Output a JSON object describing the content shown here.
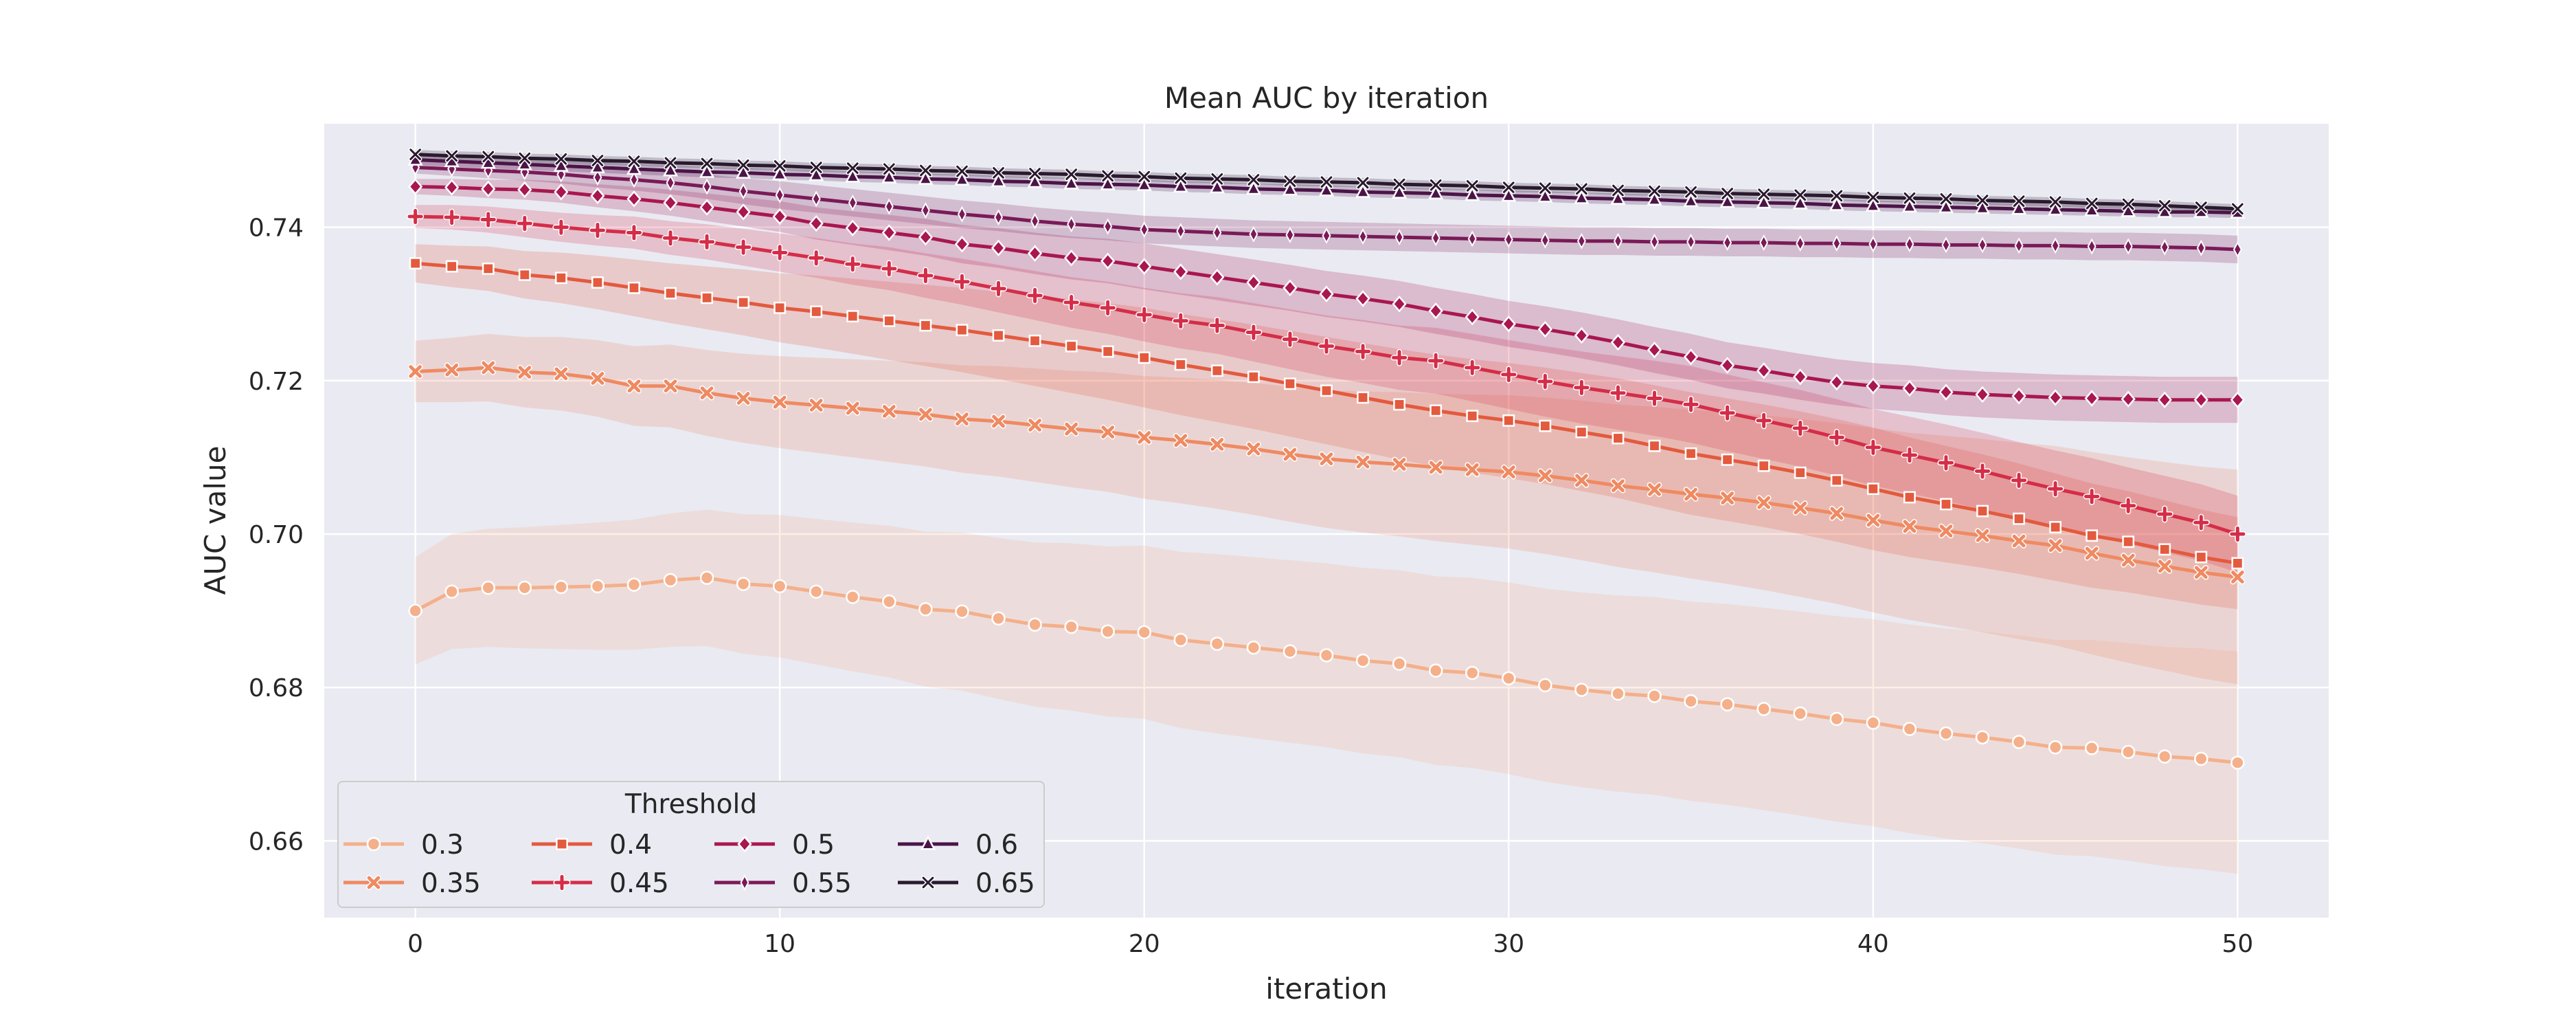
{
  "chart_data": {
    "type": "line",
    "title": "Mean AUC by iteration",
    "xlabel": "iteration",
    "ylabel": "AUC value",
    "xlim": [
      -2.5,
      52.5
    ],
    "ylim": [
      0.65,
      0.7535
    ],
    "xticks": [
      0,
      10,
      20,
      30,
      40,
      50
    ],
    "yticks": [
      0.66,
      0.68,
      0.7,
      0.72,
      0.74
    ],
    "ytick_labels": [
      "0.66",
      "0.68",
      "0.70",
      "0.72",
      "0.74"
    ],
    "grid": true,
    "legend": {
      "title": "Threshold",
      "placement": "lower-left",
      "columns": 4
    },
    "x": [
      0,
      1,
      2,
      3,
      4,
      5,
      6,
      7,
      8,
      9,
      10,
      11,
      12,
      13,
      14,
      15,
      16,
      17,
      18,
      19,
      20,
      21,
      22,
      23,
      24,
      25,
      26,
      27,
      28,
      29,
      30,
      31,
      32,
      33,
      34,
      35,
      36,
      37,
      38,
      39,
      40,
      41,
      42,
      43,
      44,
      45,
      46,
      47,
      48,
      49,
      50
    ],
    "series": [
      {
        "name": "0.3",
        "color": "#f4b08b",
        "marker": "circle",
        "values": [
          0.69,
          0.6925,
          0.693,
          0.693,
          0.6931,
          0.6932,
          0.6934,
          0.694,
          0.6943,
          0.6935,
          0.6932,
          0.6925,
          0.6918,
          0.6912,
          0.6902,
          0.6899,
          0.689,
          0.6882,
          0.6879,
          0.6873,
          0.6872,
          0.6862,
          0.6857,
          0.6852,
          0.6847,
          0.6842,
          0.6835,
          0.6831,
          0.6822,
          0.6819,
          0.6812,
          0.6803,
          0.6797,
          0.6792,
          0.6789,
          0.6782,
          0.6778,
          0.6772,
          0.6766,
          0.6759,
          0.6754,
          0.6746,
          0.674,
          0.6735,
          0.6729,
          0.6722,
          0.6721,
          0.6716,
          0.671,
          0.6707,
          0.6702
        ],
        "ci": [
          0.007,
          0.0075,
          0.0077,
          0.0079,
          0.0081,
          0.0083,
          0.0085,
          0.0087,
          0.0089,
          0.0091,
          0.0093,
          0.0095,
          0.0097,
          0.0099,
          0.0101,
          0.0103,
          0.0105,
          0.0107,
          0.0109,
          0.0111,
          0.0113,
          0.0115,
          0.0117,
          0.0118,
          0.0119,
          0.012,
          0.0121,
          0.0122,
          0.0123,
          0.0124,
          0.0125,
          0.0126,
          0.0127,
          0.0128,
          0.0129,
          0.013,
          0.0131,
          0.0132,
          0.0133,
          0.0134,
          0.0135,
          0.0136,
          0.0137,
          0.0138,
          0.0139,
          0.014,
          0.0141,
          0.0142,
          0.0143,
          0.0144,
          0.0145
        ]
      },
      {
        "name": "0.35",
        "color": "#ef8a62",
        "marker": "x",
        "values": [
          0.7212,
          0.7214,
          0.7217,
          0.7211,
          0.7209,
          0.7203,
          0.7193,
          0.7193,
          0.7184,
          0.7177,
          0.7172,
          0.7168,
          0.7164,
          0.716,
          0.7156,
          0.715,
          0.7147,
          0.7142,
          0.7137,
          0.7133,
          0.7126,
          0.7122,
          0.7117,
          0.7111,
          0.7104,
          0.7098,
          0.7094,
          0.7091,
          0.7087,
          0.7084,
          0.7081,
          0.7076,
          0.707,
          0.7063,
          0.7058,
          0.7052,
          0.7047,
          0.7041,
          0.7034,
          0.7027,
          0.7018,
          0.701,
          0.7004,
          0.6998,
          0.6991,
          0.6985,
          0.6975,
          0.6966,
          0.6958,
          0.695,
          0.6944
        ],
        "ci": [
          0.004,
          0.0042,
          0.0044,
          0.0046,
          0.0048,
          0.005,
          0.0052,
          0.0054,
          0.0056,
          0.0058,
          0.006,
          0.0062,
          0.0064,
          0.0066,
          0.0068,
          0.007,
          0.0072,
          0.0074,
          0.0076,
          0.0078,
          0.008,
          0.0082,
          0.0084,
          0.0086,
          0.0088,
          0.009,
          0.0092,
          0.0094,
          0.0096,
          0.0098,
          0.01,
          0.0102,
          0.0104,
          0.0106,
          0.0108,
          0.011,
          0.0112,
          0.0114,
          0.0116,
          0.0118,
          0.012,
          0.0122,
          0.0124,
          0.0126,
          0.0128,
          0.013,
          0.0132,
          0.0134,
          0.0136,
          0.0138,
          0.014
        ]
      },
      {
        "name": "0.4",
        "color": "#e35a3e",
        "marker": "square",
        "values": [
          0.7353,
          0.7349,
          0.7346,
          0.7338,
          0.7334,
          0.7328,
          0.7321,
          0.7314,
          0.7308,
          0.7302,
          0.7295,
          0.729,
          0.7284,
          0.7278,
          0.7272,
          0.7266,
          0.7259,
          0.7252,
          0.7245,
          0.7238,
          0.723,
          0.7221,
          0.7213,
          0.7205,
          0.7196,
          0.7187,
          0.7178,
          0.7169,
          0.7161,
          0.7154,
          0.7148,
          0.7141,
          0.7133,
          0.7125,
          0.7115,
          0.7105,
          0.7097,
          0.7089,
          0.708,
          0.707,
          0.7059,
          0.7048,
          0.7039,
          0.703,
          0.702,
          0.7009,
          0.6998,
          0.699,
          0.698,
          0.697,
          0.6962
        ],
        "ci": [
          0.0025,
          0.0027,
          0.0029,
          0.0031,
          0.0033,
          0.0035,
          0.0037,
          0.0039,
          0.0041,
          0.0043,
          0.0045,
          0.0047,
          0.0049,
          0.0051,
          0.0053,
          0.0055,
          0.0057,
          0.0059,
          0.0061,
          0.0063,
          0.0065,
          0.0066,
          0.0067,
          0.0068,
          0.0069,
          0.007,
          0.0071,
          0.0072,
          0.0073,
          0.0074,
          0.0075,
          0.0076,
          0.0077,
          0.0078,
          0.0079,
          0.008,
          0.008,
          0.008,
          0.008,
          0.008,
          0.008,
          0.0078,
          0.0076,
          0.0074,
          0.0072,
          0.007,
          0.0068,
          0.0066,
          0.0064,
          0.0062,
          0.006
        ]
      },
      {
        "name": "0.45",
        "color": "#d42d48",
        "marker": "plus",
        "values": [
          0.7414,
          0.7413,
          0.741,
          0.7405,
          0.74,
          0.7396,
          0.7393,
          0.7386,
          0.7381,
          0.7374,
          0.7367,
          0.736,
          0.7352,
          0.7346,
          0.7337,
          0.7329,
          0.732,
          0.7311,
          0.7302,
          0.7295,
          0.7286,
          0.7278,
          0.7272,
          0.7263,
          0.7254,
          0.7245,
          0.7238,
          0.723,
          0.7226,
          0.7217,
          0.7208,
          0.7199,
          0.7191,
          0.7184,
          0.7177,
          0.7169,
          0.7158,
          0.7148,
          0.7138,
          0.7126,
          0.7113,
          0.7103,
          0.7093,
          0.7082,
          0.707,
          0.7059,
          0.7049,
          0.7037,
          0.7026,
          0.7015,
          0.7
        ],
        "ci": [
          0.0015,
          0.0016,
          0.0017,
          0.0018,
          0.0019,
          0.002,
          0.0021,
          0.0022,
          0.0023,
          0.0024,
          0.0025,
          0.0026,
          0.0027,
          0.0028,
          0.0029,
          0.003,
          0.0031,
          0.0032,
          0.0033,
          0.0034,
          0.0035,
          0.0036,
          0.0037,
          0.0038,
          0.0039,
          0.004,
          0.0041,
          0.0042,
          0.0043,
          0.0044,
          0.0045,
          0.0046,
          0.0047,
          0.0048,
          0.0049,
          0.005,
          0.005,
          0.005,
          0.005,
          0.005,
          0.005,
          0.005,
          0.005,
          0.005,
          0.005,
          0.005,
          0.005,
          0.005,
          0.005,
          0.005,
          0.005
        ]
      },
      {
        "name": "0.5",
        "color": "#a8174f",
        "marker": "diamond",
        "values": [
          0.7453,
          0.7452,
          0.745,
          0.7449,
          0.7446,
          0.7441,
          0.7437,
          0.7432,
          0.7426,
          0.742,
          0.7414,
          0.7405,
          0.7399,
          0.7393,
          0.7387,
          0.7378,
          0.7373,
          0.7366,
          0.736,
          0.7356,
          0.7349,
          0.7342,
          0.7335,
          0.7328,
          0.7321,
          0.7313,
          0.7307,
          0.73,
          0.7291,
          0.7283,
          0.7274,
          0.7267,
          0.7259,
          0.725,
          0.724,
          0.7231,
          0.722,
          0.7213,
          0.7205,
          0.7198,
          0.7193,
          0.719,
          0.7185,
          0.7182,
          0.718,
          0.7178,
          0.7177,
          0.7176,
          0.7175,
          0.7175,
          0.7175
        ],
        "ci": [
          0.001,
          0.0011,
          0.0012,
          0.0013,
          0.0014,
          0.0015,
          0.0016,
          0.0017,
          0.0018,
          0.0019,
          0.002,
          0.0021,
          0.0022,
          0.0023,
          0.0024,
          0.0025,
          0.0026,
          0.0027,
          0.0028,
          0.0029,
          0.003,
          0.003,
          0.003,
          0.003,
          0.003,
          0.003,
          0.003,
          0.003,
          0.003,
          0.003,
          0.003,
          0.003,
          0.003,
          0.003,
          0.003,
          0.003,
          0.003,
          0.003,
          0.003,
          0.003,
          0.003,
          0.003,
          0.003,
          0.003,
          0.003,
          0.003,
          0.003,
          0.003,
          0.003,
          0.003,
          0.003
        ]
      },
      {
        "name": "0.55",
        "color": "#7a1a57",
        "marker": "thin-diamond",
        "values": [
          0.7478,
          0.7476,
          0.7474,
          0.7472,
          0.7469,
          0.7465,
          0.7462,
          0.7458,
          0.7453,
          0.7447,
          0.7442,
          0.7437,
          0.7432,
          0.7427,
          0.7422,
          0.7417,
          0.7413,
          0.7408,
          0.7404,
          0.7401,
          0.7397,
          0.7395,
          0.7393,
          0.7391,
          0.739,
          0.7389,
          0.7388,
          0.7387,
          0.7386,
          0.7385,
          0.7384,
          0.7383,
          0.7382,
          0.7382,
          0.7381,
          0.7381,
          0.738,
          0.738,
          0.7379,
          0.7379,
          0.7378,
          0.7378,
          0.7377,
          0.7377,
          0.7376,
          0.7376,
          0.7375,
          0.7375,
          0.7374,
          0.7373,
          0.7371
        ],
        "ci": [
          0.0008,
          0.0009,
          0.001,
          0.0011,
          0.0012,
          0.0013,
          0.0014,
          0.0015,
          0.0016,
          0.0017,
          0.0018,
          0.0018,
          0.0018,
          0.0018,
          0.0018,
          0.0018,
          0.0018,
          0.0018,
          0.0018,
          0.0018,
          0.0018,
          0.0018,
          0.0018,
          0.0018,
          0.0018,
          0.0018,
          0.0018,
          0.0018,
          0.0018,
          0.0018,
          0.0018,
          0.0018,
          0.0018,
          0.0018,
          0.0018,
          0.0018,
          0.0018,
          0.0018,
          0.0018,
          0.0018,
          0.0018,
          0.0018,
          0.0018,
          0.0018,
          0.0018,
          0.0018,
          0.0018,
          0.0018,
          0.0018,
          0.0018,
          0.0018
        ]
      },
      {
        "name": "0.6",
        "color": "#4b1447",
        "marker": "triangle",
        "values": [
          0.7488,
          0.7486,
          0.7484,
          0.7482,
          0.748,
          0.7478,
          0.7476,
          0.7474,
          0.7472,
          0.7471,
          0.7469,
          0.7468,
          0.7466,
          0.7465,
          0.7463,
          0.7462,
          0.746,
          0.7459,
          0.7457,
          0.7456,
          0.7455,
          0.7453,
          0.7452,
          0.745,
          0.7449,
          0.7448,
          0.7446,
          0.7445,
          0.7444,
          0.7442,
          0.7441,
          0.744,
          0.7438,
          0.7437,
          0.7436,
          0.7434,
          0.7433,
          0.7432,
          0.7431,
          0.7429,
          0.7428,
          0.7427,
          0.7426,
          0.7425,
          0.7424,
          0.7423,
          0.7422,
          0.7421,
          0.742,
          0.742,
          0.7419
        ],
        "ci": [
          0.0007,
          0.0007,
          0.0007,
          0.0007,
          0.0007,
          0.0007,
          0.0007,
          0.0007,
          0.0007,
          0.0007,
          0.0007,
          0.0007,
          0.0007,
          0.0007,
          0.0007,
          0.0007,
          0.0007,
          0.0007,
          0.0007,
          0.0007,
          0.0007,
          0.0007,
          0.0007,
          0.0007,
          0.0007,
          0.0007,
          0.0007,
          0.0007,
          0.0007,
          0.0007,
          0.0007,
          0.0007,
          0.0007,
          0.0007,
          0.0007,
          0.0007,
          0.0007,
          0.0007,
          0.0007,
          0.0007,
          0.0007,
          0.0007,
          0.0007,
          0.0007,
          0.0007,
          0.0007,
          0.0007,
          0.0007,
          0.0007,
          0.0007,
          0.0007
        ]
      },
      {
        "name": "0.65",
        "color": "#2a1a2e",
        "marker": "x-thin",
        "values": [
          0.7495,
          0.7493,
          0.7492,
          0.749,
          0.7489,
          0.7487,
          0.7486,
          0.7484,
          0.7483,
          0.7481,
          0.748,
          0.7478,
          0.7477,
          0.7476,
          0.7474,
          0.7473,
          0.7471,
          0.747,
          0.7469,
          0.7467,
          0.7466,
          0.7464,
          0.7463,
          0.7462,
          0.746,
          0.7459,
          0.7458,
          0.7456,
          0.7455,
          0.7454,
          0.7452,
          0.7451,
          0.745,
          0.7448,
          0.7447,
          0.7446,
          0.7444,
          0.7443,
          0.7442,
          0.7441,
          0.7439,
          0.7438,
          0.7437,
          0.7435,
          0.7434,
          0.7433,
          0.7431,
          0.743,
          0.7428,
          0.7426,
          0.7424
        ],
        "ci": [
          0.0006,
          0.0006,
          0.0006,
          0.0006,
          0.0006,
          0.0006,
          0.0006,
          0.0006,
          0.0006,
          0.0006,
          0.0006,
          0.0006,
          0.0006,
          0.0006,
          0.0006,
          0.0006,
          0.0006,
          0.0006,
          0.0006,
          0.0006,
          0.0006,
          0.0006,
          0.0006,
          0.0006,
          0.0006,
          0.0006,
          0.0006,
          0.0006,
          0.0006,
          0.0006,
          0.0006,
          0.0006,
          0.0006,
          0.0006,
          0.0006,
          0.0006,
          0.0006,
          0.0006,
          0.0006,
          0.0006,
          0.0006,
          0.0006,
          0.0006,
          0.0006,
          0.0006,
          0.0006,
          0.0006,
          0.0006,
          0.0006,
          0.0006,
          0.0006
        ]
      }
    ]
  },
  "colors": {
    "plot_background": "#eaeaf2",
    "grid": "#ffffff",
    "text": "#262626"
  }
}
